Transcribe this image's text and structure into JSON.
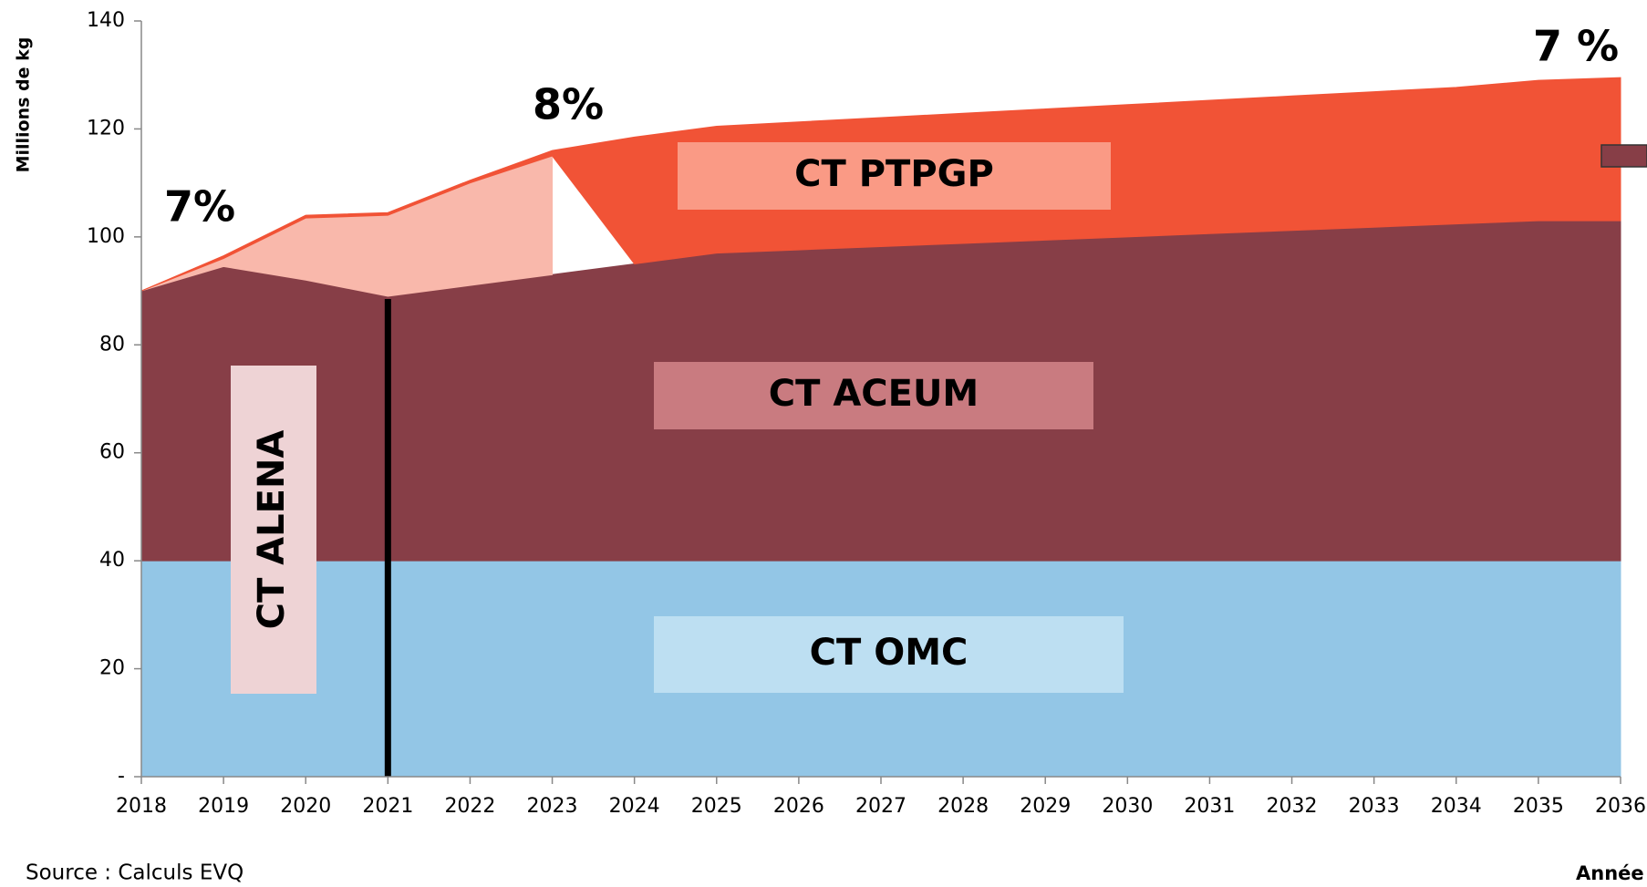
{
  "chart_data": {
    "type": "stacked_area",
    "ylabel": "Millions de kg",
    "xlabel": "Année",
    "source": "Source :  Calculs EVQ",
    "x": [
      2018,
      2019,
      2020,
      2021,
      2022,
      2023,
      2024,
      2025,
      2026,
      2027,
      2028,
      2029,
      2030,
      2031,
      2032,
      2033,
      2034,
      2035,
      2036
    ],
    "xlim": [
      2018,
      2036
    ],
    "xticks": [
      2018,
      2019,
      2020,
      2021,
      2022,
      2023,
      2024,
      2025,
      2026,
      2027,
      2028,
      2029,
      2030,
      2031,
      2032,
      2033,
      2034,
      2035,
      2036
    ],
    "ylim": [
      0,
      140
    ],
    "yticks": [
      {
        "value": 0,
        "label": "-"
      },
      20,
      40,
      60,
      80,
      100,
      120,
      140
    ],
    "series": [
      {
        "name": "CT OMC",
        "color": "#93c6e6",
        "values": [
          40,
          40,
          40,
          40,
          40,
          40,
          40,
          40,
          40,
          40,
          40,
          40,
          40,
          40,
          40,
          40,
          40,
          40,
          40
        ]
      },
      {
        "name": "CT ACEUM",
        "color": "#873e47",
        "values": [
          50,
          54.5,
          52,
          49,
          51,
          53,
          55,
          57,
          57.6,
          58.2,
          58.8,
          59.4,
          60,
          60.6,
          61.2,
          61.8,
          62.4,
          63,
          63
        ]
      },
      {
        "color": "#f9b8ab",
        "values": [
          0,
          1.5,
          11.5,
          15,
          19,
          22,
          null,
          null,
          null,
          null,
          null,
          null,
          null,
          null,
          null,
          null,
          null,
          null,
          null
        ]
      },
      {
        "name": "CT PTPGP",
        "color": "#f15336",
        "values": [
          0,
          0.5,
          0.5,
          0.5,
          0.5,
          1,
          23.5,
          23.5,
          23.7,
          23.9,
          24.1,
          24.3,
          24.5,
          24.7,
          24.9,
          25.1,
          25.3,
          26,
          26.5
        ]
      }
    ],
    "annotations": [
      "7%",
      "8%",
      "7 %",
      "CT ALENA"
    ]
  }
}
